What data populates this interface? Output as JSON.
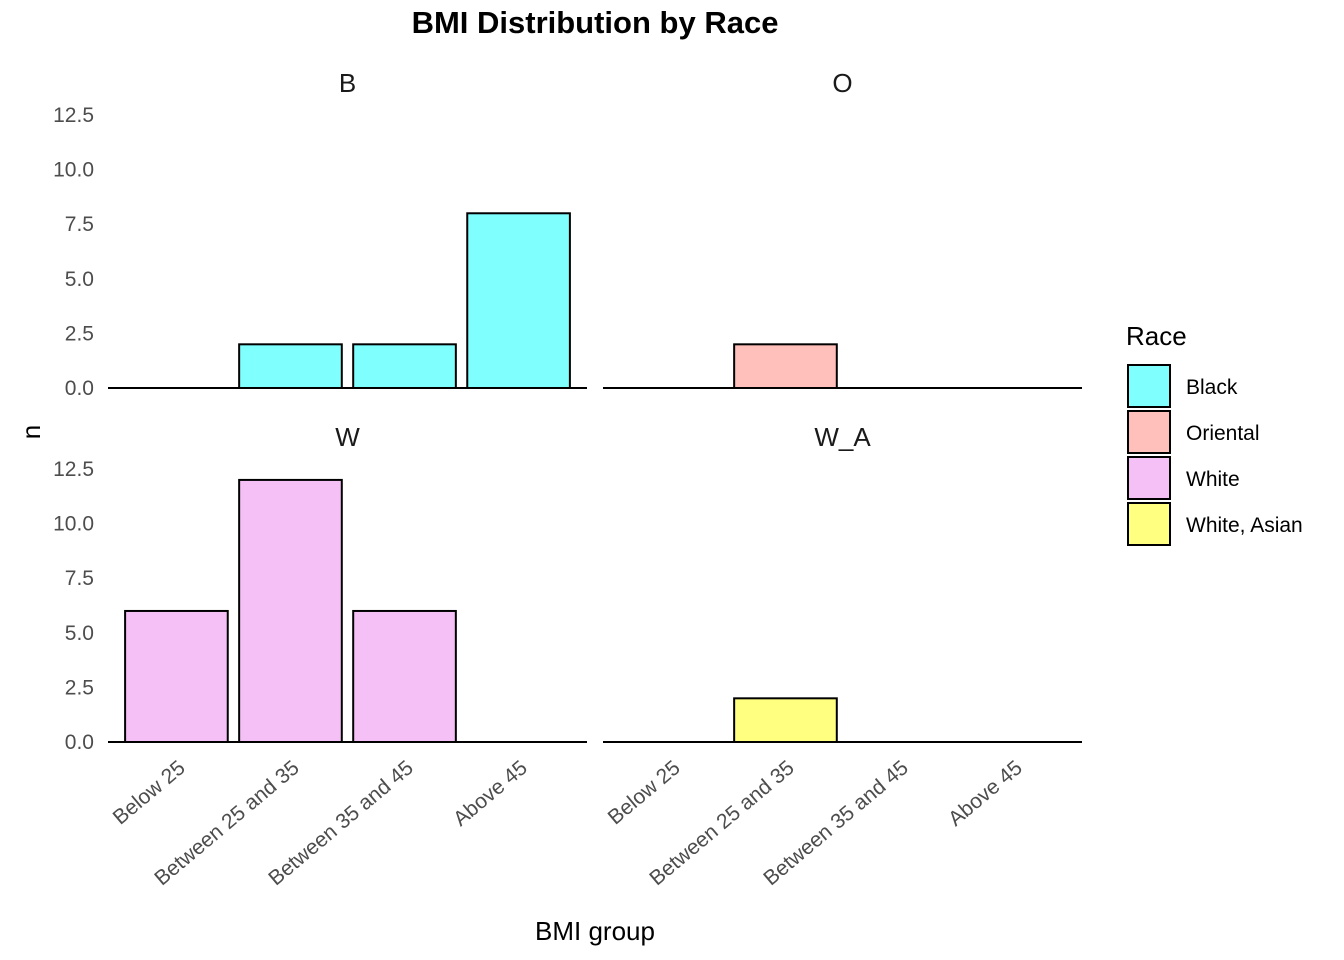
{
  "chart_data": {
    "type": "bar",
    "title": "BMI Distribution by Race",
    "xlabel": "BMI group",
    "ylabel": "n",
    "categories": [
      "Below 25",
      "Between 25 and 35",
      "Between 35 and 45",
      "Above 45"
    ],
    "y_ticks": [
      "0.0",
      "2.5",
      "5.0",
      "7.5",
      "10.0",
      "12.5"
    ],
    "ylim": [
      0,
      12.5
    ],
    "grid": false,
    "legend": {
      "title": "Race",
      "placement": "right",
      "entries": [
        {
          "label": "Black",
          "color": "#80ffff"
        },
        {
          "label": "Oriental",
          "color": "#ffbfbb"
        },
        {
          "label": "White",
          "color": "#f5c0f5"
        },
        {
          "label": "White, Asian",
          "color": "#ffff80"
        }
      ]
    },
    "facets": [
      {
        "strip": "B",
        "color": "#80ffff",
        "values": [
          0,
          2,
          2,
          8
        ]
      },
      {
        "strip": "O",
        "color": "#ffbfbb",
        "values": [
          0,
          2,
          0,
          0
        ]
      },
      {
        "strip": "W",
        "color": "#f5c0f5",
        "values": [
          6,
          12,
          6,
          0
        ]
      },
      {
        "strip": "W_A",
        "color": "#ffff80",
        "values": [
          0,
          2,
          0,
          0
        ]
      }
    ]
  }
}
